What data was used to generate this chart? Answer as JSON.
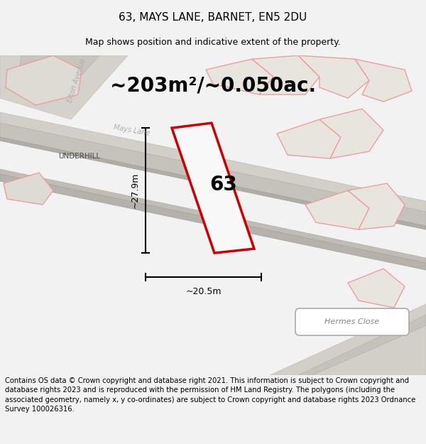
{
  "title_line1": "63, MAYS LANE, BARNET, EN5 2DU",
  "title_line2": "Map shows position and indicative extent of the property.",
  "area_text": "~203m²/~0.050ac.",
  "label_63": "63",
  "dim_vertical": "~27.9m",
  "dim_horizontal": "~20.5m",
  "label_underhill": "UNDERHILL",
  "label_elton": "Elton Avenue",
  "label_mays": "Mays Lane",
  "label_hermes": "Hermes Close",
  "footer_text": "Contains OS data © Crown copyright and database right 2021. This information is subject to Crown copyright and database rights 2023 and is reproduced with the permission of HM Land Registry. The polygons (including the associated geometry, namely x, y co-ordinates) are subject to Crown copyright and database rights 2023 Ordnance Survey 100026316.",
  "bg_color": "#f2f2f2",
  "map_bg": "#edebe7",
  "road_gray": "#c8c6c2",
  "road_dark": "#b5b3af",
  "pink": "#e8a0a0",
  "red": "#cc0000",
  "plot_fill": "#f8f8f8",
  "white": "#ffffff",
  "title_fs": 11,
  "sub_fs": 9,
  "area_fs": 20,
  "footer_fs": 7.2
}
